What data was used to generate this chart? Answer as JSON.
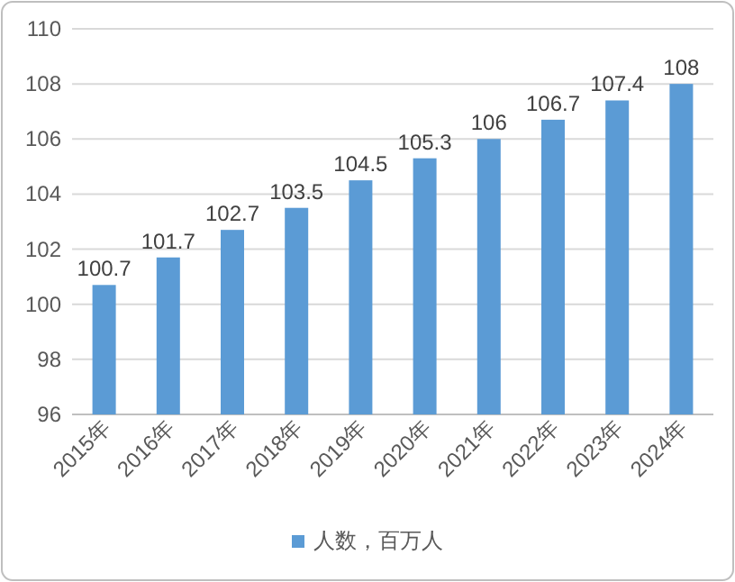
{
  "chart_data": {
    "type": "bar",
    "categories": [
      "2015年",
      "2016年",
      "2017年",
      "2018年",
      "2019年",
      "2020年",
      "2021年",
      "2022年",
      "2023年",
      "2024年"
    ],
    "series": [
      {
        "name": "人数，百万人",
        "color": "#5b9bd5",
        "values": [
          100.7,
          101.7,
          102.7,
          103.5,
          104.5,
          105.3,
          106,
          106.7,
          107.4,
          108
        ]
      }
    ],
    "ylim": [
      96,
      110
    ],
    "yticks": [
      96,
      98,
      100,
      102,
      104,
      106,
      108,
      110
    ],
    "grid": "y",
    "data_labels": true,
    "legend": "bottom"
  }
}
